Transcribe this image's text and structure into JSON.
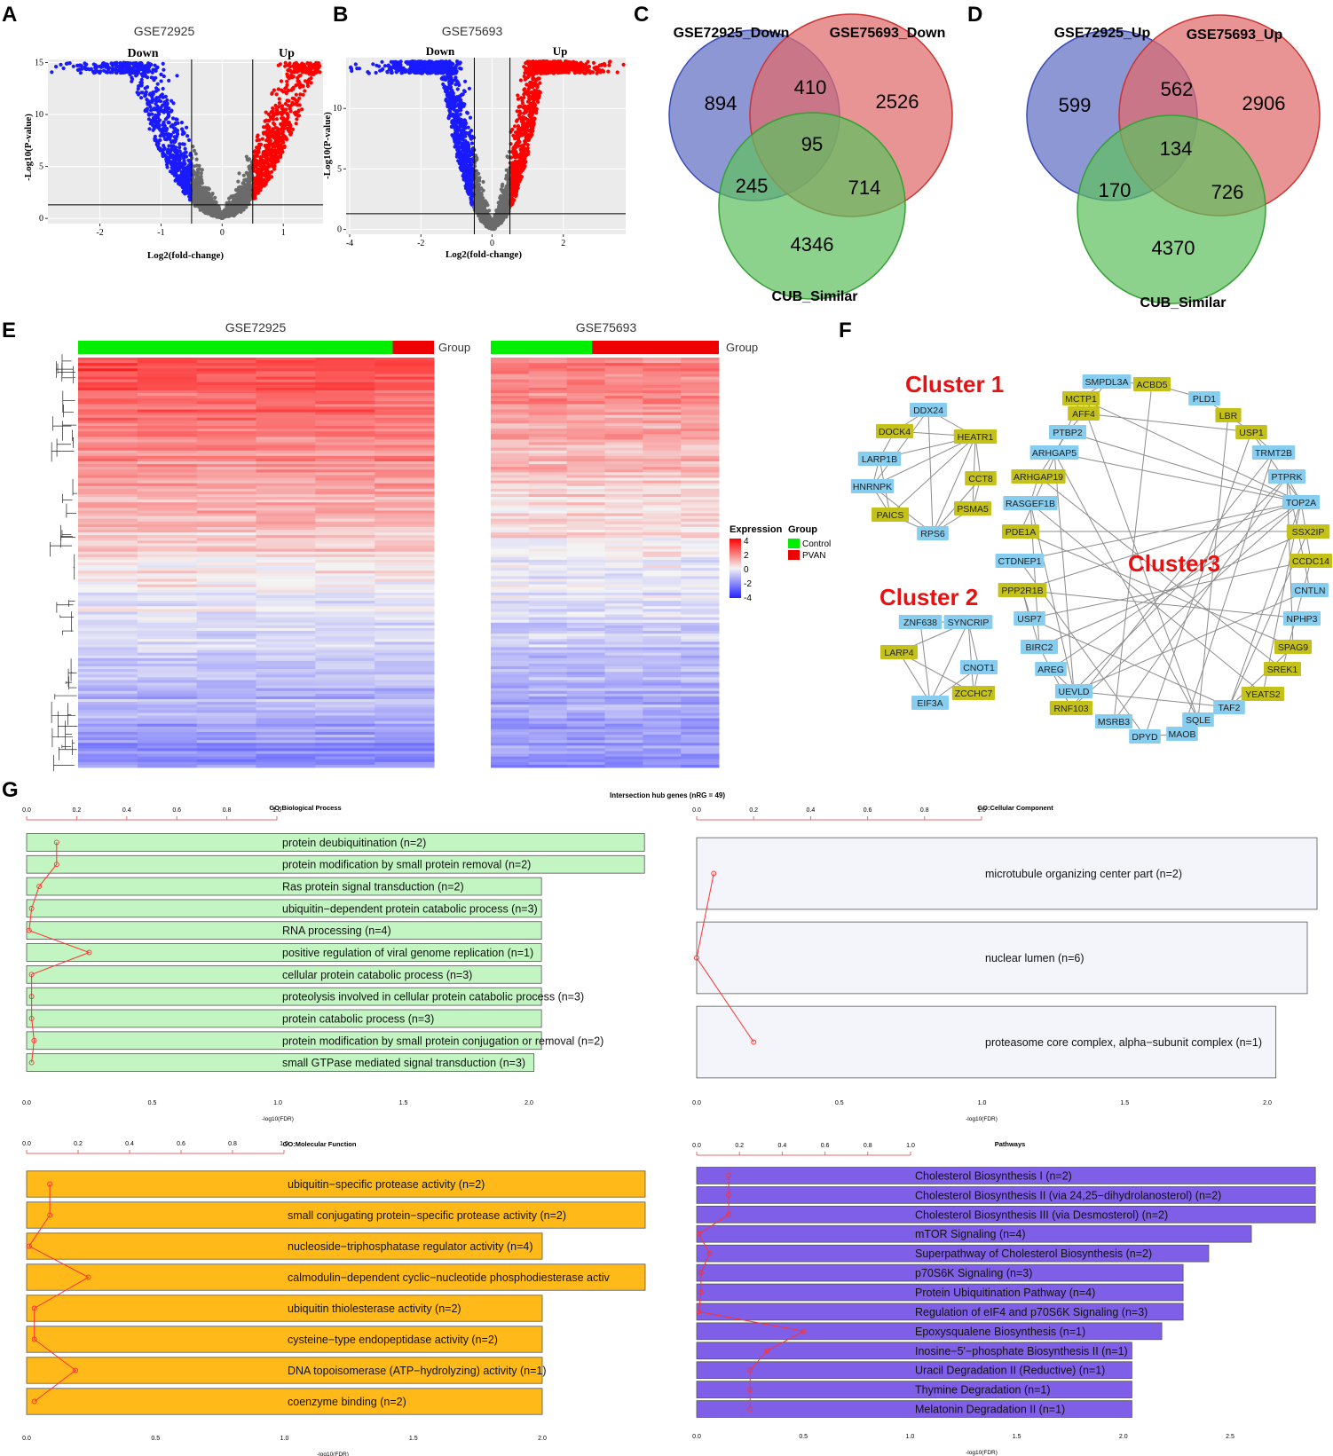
{
  "panel_letters": {
    "a": "A",
    "b": "B",
    "c": "C",
    "d": "D",
    "e": "E",
    "f": "F",
    "g": "G"
  },
  "chart_data": [
    {
      "id": "volcano_a",
      "type": "scatter",
      "title": "GSE72925",
      "xlabel": "Log2(fold-change)",
      "ylabel": "-Log10(P-value)",
      "xlim": [
        -2.85,
        1.65
      ],
      "ylim": [
        -0.5,
        15.3
      ],
      "xticks": [
        -2,
        -1,
        0,
        1
      ],
      "yticks": [
        0,
        5,
        10,
        15
      ],
      "fc_threshold": 0.5,
      "p_line": 1.3,
      "region_labels": {
        "down": "Down",
        "up": "Up"
      },
      "colors": {
        "down": "#1a1aff",
        "up": "#ff0000",
        "ns": "#6b6b6b"
      }
    },
    {
      "id": "volcano_b",
      "type": "scatter",
      "title": "GSE75693",
      "xlabel": "Log2(fold-change)",
      "ylabel": "-Log10(P-value)",
      "xlim": [
        -4.1,
        3.75
      ],
      "ylim": [
        -0.4,
        14.2
      ],
      "xticks": [
        -4,
        -2,
        0,
        2
      ],
      "yticks": [
        0,
        5,
        10
      ],
      "fc_threshold": 0.5,
      "p_line": 1.3,
      "region_labels": {
        "down": "Down",
        "up": "Up"
      },
      "colors": {
        "down": "#1a1aff",
        "up": "#ff0000",
        "ns": "#6b6b6b"
      }
    },
    {
      "id": "venn_c",
      "type": "venn",
      "sets": [
        "GSE72925_Down",
        "GSE75693_Down",
        "CUB_Similar"
      ],
      "colors": [
        "#5f6fc4",
        "#e06b6b",
        "#5fbf5f"
      ],
      "regions": {
        "a_only": "894",
        "b_only": "2526",
        "c_only": "4346",
        "ab": "410",
        "ac": "245",
        "bc": "714",
        "abc": "95"
      }
    },
    {
      "id": "venn_d",
      "type": "venn",
      "sets": [
        "GSE72925_Up",
        "GSE75693_Up",
        "CUB_Similar"
      ],
      "colors": [
        "#5f6fc4",
        "#e06b6b",
        "#5fbf5f"
      ],
      "regions": {
        "a_only": "599",
        "b_only": "2906",
        "c_only": "4370",
        "ab": "562",
        "ac": "170",
        "bc": "726",
        "abc": "134"
      }
    },
    {
      "id": "heatmap_e",
      "type": "heatmap",
      "titles": [
        "GSE72925",
        "GSE75693"
      ],
      "group_label": "Group",
      "groups": {
        "GSE72925": {
          "control_fraction": 0.884,
          "pvan_fraction": 0.116
        },
        "GSE75693": {
          "control_fraction": 0.444,
          "pvan_fraction": 0.556
        }
      },
      "legend": {
        "expression_title": "Expression",
        "expression_ticks": [
          "4",
          "2",
          "0",
          "-2",
          "-4"
        ],
        "group_title": "Group",
        "group_entries": [
          "Control",
          "PVAN"
        ],
        "group_colors": [
          "#00ee00",
          "#ee0000"
        ]
      },
      "color_scale": {
        "high": "#ff0000",
        "mid": "#f2f2f2",
        "low": "#3333ff"
      }
    },
    {
      "id": "bars_bp",
      "type": "bar",
      "title": "GO:Biological Process",
      "xlabel": "-log10(FDR)",
      "xlim": [
        0,
        2.0
      ],
      "xticks": [
        "0.0",
        "0.5",
        "1.0",
        "1.5",
        "2.0"
      ],
      "top_ticks": [
        "0.0",
        "0.2",
        "0.4",
        "0.6",
        "0.8",
        "1.0"
      ],
      "bar_color": "#c2f5c2",
      "categories": [
        "protein deubiquitination (n=2)",
        "protein modification by small protein removal (n=2)",
        "Ras protein signal transduction (n=2)",
        "ubiquitin−dependent protein catabolic process (n=3)",
        "RNA processing (n=4)",
        "positive regulation of viral genome replication (n=1)",
        "cellular protein catabolic process (n=3)",
        "proteolysis involved in cellular protein catabolic process (n=3)",
        "protein catabolic process (n=3)",
        "protein modification by small protein conjugation or removal (n=2)",
        "small GTPase mediated signal transduction (n=3)"
      ],
      "values": [
        2.46,
        2.46,
        2.05,
        2.05,
        2.05,
        2.05,
        2.05,
        2.05,
        2.05,
        2.05,
        2.02
      ],
      "line_values": [
        0.12,
        0.12,
        0.05,
        0.02,
        0.01,
        0.25,
        0.02,
        0.02,
        0.02,
        0.03,
        0.02
      ]
    },
    {
      "id": "bars_cc",
      "type": "bar",
      "title": "GO:Cellular Component",
      "xlabel": "-log10(FDR)",
      "xlim": [
        0,
        2.0
      ],
      "xticks": [
        "0.0",
        "0.5",
        "1.0",
        "1.5",
        "2.0"
      ],
      "top_ticks": [
        "0.0",
        "0.2",
        "0.4",
        "0.6",
        "0.8",
        "1.0"
      ],
      "bar_color": "#f4f5fb",
      "categories": [
        "microtubule organizing center part (n=2)",
        "nuclear lumen (n=6)",
        "proteasome core complex, alpha−subunit complex (n=1)"
      ],
      "values": [
        2.18,
        2.14,
        2.03
      ],
      "line_values": [
        0.06,
        0.0,
        0.2
      ]
    },
    {
      "id": "bars_mf",
      "type": "bar",
      "title": "GO:Molecular Function",
      "xlabel": "-log10(FDR)",
      "xlim": [
        0,
        2.0
      ],
      "xticks": [
        "0.0",
        "0.5",
        "1.0",
        "1.5",
        "2.0"
      ],
      "top_ticks": [
        "0.0",
        "0.2",
        "0.4",
        "0.6",
        "0.8",
        "1.0"
      ],
      "bar_color": "#ffba19",
      "categories": [
        "ubiquitin−specific protease activity (n=2)",
        "small conjugating protein−specific protease activity (n=2)",
        "nucleoside−triphosphatase regulator activity (n=4)",
        "calmodulin−dependent cyclic−nucleotide phosphodiesterase activ",
        "ubiquitin thiolesterase activity (n=2)",
        "cysteine−type endopeptidase activity (n=2)",
        "DNA topoisomerase (ATP−hydrolyzing) activity (n=1)",
        "coenzyme binding (n=2)"
      ],
      "values": [
        2.4,
        2.4,
        2.0,
        2.4,
        2.0,
        2.0,
        2.0,
        2.0
      ],
      "line_values": [
        0.09,
        0.09,
        0.01,
        0.24,
        0.03,
        0.03,
        0.19,
        0.03
      ]
    },
    {
      "id": "bars_pw",
      "type": "bar",
      "title": "Pathways",
      "xlabel": "-log10(FDR)",
      "xlim": [
        0,
        2.5
      ],
      "xticks": [
        "0.0",
        "0.5",
        "1.0",
        "1.5",
        "2.0",
        "2.5"
      ],
      "top_ticks": [
        "0.0",
        "0.2",
        "0.4",
        "0.6",
        "0.8",
        "1.0"
      ],
      "bar_color": "#7f5fe8",
      "categories": [
        "Cholesterol Biosynthesis I (n=2)",
        "Cholesterol Biosynthesis II (via 24,25−dihydrolanosterol) (n=2)",
        "Cholesterol Biosynthesis III (via Desmosterol) (n=2)",
        "mTOR Signaling (n=4)",
        "Superpathway of Cholesterol Biosynthesis (n=2)",
        "p70S6K Signaling (n=3)",
        "Protein Ubiquitination Pathway (n=4)",
        "Regulation of eIF4 and p70S6K Signaling (n=3)",
        "Epoxysqualene Biosynthesis (n=1)",
        "Inosine−5'−phosphate Biosynthesis II (n=1)",
        "Uracil Degradation II (Reductive) (n=1)",
        "Thymine Degradation (n=1)",
        "Melatonin Degradation II (n=1)"
      ],
      "values": [
        2.9,
        2.9,
        2.9,
        2.6,
        2.4,
        2.28,
        2.28,
        2.28,
        2.18,
        2.04,
        2.04,
        2.04,
        2.04
      ],
      "line_values": [
        0.15,
        0.15,
        0.15,
        0.01,
        0.06,
        0.02,
        0.02,
        0.01,
        0.5,
        0.33,
        0.25,
        0.25,
        0.25
      ]
    }
  ],
  "intersection_title": "Intersection hub genes (nRG = 49)",
  "network": {
    "cluster_labels": [
      "Cluster 1",
      "Cluster 2",
      "Cluster3"
    ],
    "nodes": [
      {
        "id": "DDX24",
        "color": "blue"
      },
      {
        "id": "DOCK4",
        "color": "olive"
      },
      {
        "id": "HEATR1",
        "color": "olive"
      },
      {
        "id": "LARP1B",
        "color": "blue"
      },
      {
        "id": "CCT8",
        "color": "olive"
      },
      {
        "id": "HNRNPK",
        "color": "blue"
      },
      {
        "id": "PSMA5",
        "color": "olive"
      },
      {
        "id": "PAICS",
        "color": "olive"
      },
      {
        "id": "RPS6",
        "color": "blue"
      },
      {
        "id": "ZNF638",
        "color": "blue"
      },
      {
        "id": "SYNCRIP",
        "color": "blue"
      },
      {
        "id": "LARP4",
        "color": "olive"
      },
      {
        "id": "CNOT1",
        "color": "blue"
      },
      {
        "id": "ZCCHC7",
        "color": "olive"
      },
      {
        "id": "EIF3A",
        "color": "blue"
      },
      {
        "id": "SMPDL3A",
        "color": "blue"
      },
      {
        "id": "ACBD5",
        "color": "olive"
      },
      {
        "id": "MCTP1",
        "color": "olive"
      },
      {
        "id": "PLD1",
        "color": "blue"
      },
      {
        "id": "AFF4",
        "color": "olive"
      },
      {
        "id": "LBR",
        "color": "olive"
      },
      {
        "id": "PTBP2",
        "color": "blue"
      },
      {
        "id": "USP1",
        "color": "olive"
      },
      {
        "id": "ARHGAP5",
        "color": "blue"
      },
      {
        "id": "TRMT2B",
        "color": "blue"
      },
      {
        "id": "ARHGAP19",
        "color": "olive"
      },
      {
        "id": "PTPRK",
        "color": "blue"
      },
      {
        "id": "RASGEF1B",
        "color": "blue"
      },
      {
        "id": "TOP2A",
        "color": "blue"
      },
      {
        "id": "PDE1A",
        "color": "olive"
      },
      {
        "id": "SSX2IP",
        "color": "olive"
      },
      {
        "id": "CTDNEP1",
        "color": "blue"
      },
      {
        "id": "CCDC14",
        "color": "olive"
      },
      {
        "id": "PPP2R1B",
        "color": "olive"
      },
      {
        "id": "CNTLN",
        "color": "blue"
      },
      {
        "id": "USP7",
        "color": "blue"
      },
      {
        "id": "NPHP3",
        "color": "blue"
      },
      {
        "id": "BIRC2",
        "color": "blue"
      },
      {
        "id": "SPAG9",
        "color": "olive"
      },
      {
        "id": "AREG",
        "color": "blue"
      },
      {
        "id": "SREK1",
        "color": "olive"
      },
      {
        "id": "UEVLD",
        "color": "blue"
      },
      {
        "id": "YEATS2",
        "color": "olive"
      },
      {
        "id": "RNF103",
        "color": "olive"
      },
      {
        "id": "TAF2",
        "color": "blue"
      },
      {
        "id": "MSRB3",
        "color": "blue"
      },
      {
        "id": "SQLE",
        "color": "blue"
      },
      {
        "id": "DPYD",
        "color": "blue"
      },
      {
        "id": "MAOB",
        "color": "blue"
      }
    ],
    "edges": [
      [
        "DDX24",
        "DOCK4"
      ],
      [
        "DDX24",
        "HEATR1"
      ],
      [
        "DDX24",
        "HNRNPK"
      ],
      [
        "DDX24",
        "RPS6"
      ],
      [
        "DOCK4",
        "HEATR1"
      ],
      [
        "DOCK4",
        "LARP1B"
      ],
      [
        "HEATR1",
        "LARP1B"
      ],
      [
        "HEATR1",
        "HNRNPK"
      ],
      [
        "HEATR1",
        "PAICS"
      ],
      [
        "HEATR1",
        "RPS6"
      ],
      [
        "HEATR1",
        "PSMA5"
      ],
      [
        "HEATR1",
        "CCT8"
      ],
      [
        "LARP1B",
        "HNRNPK"
      ],
      [
        "HNRNPK",
        "PAICS"
      ],
      [
        "HNRNPK",
        "RPS6"
      ],
      [
        "PAICS",
        "RPS6"
      ],
      [
        "PSMA5",
        "RPS6"
      ],
      [
        "CCT8",
        "PSMA5"
      ],
      [
        "CCT8",
        "RPS6"
      ],
      [
        "LARP1B",
        "PAICS"
      ],
      [
        "ZNF638",
        "SYNCRIP"
      ],
      [
        "ZNF638",
        "EIF3A"
      ],
      [
        "SYNCRIP",
        "LARP4"
      ],
      [
        "SYNCRIP",
        "CNOT1"
      ],
      [
        "SYNCRIP",
        "ZCCHC7"
      ],
      [
        "SYNCRIP",
        "EIF3A"
      ],
      [
        "LARP4",
        "EIF3A"
      ],
      [
        "LARP4",
        "ZCCHC7"
      ],
      [
        "CNOT1",
        "ZCCHC7"
      ],
      [
        "CNOT1",
        "EIF3A"
      ],
      [
        "SMPDL3A",
        "ACBD5"
      ],
      [
        "SMPDL3A",
        "MCTP1"
      ],
      [
        "SMPDL3A",
        "AFF4"
      ],
      [
        "ACBD5",
        "PLD1"
      ],
      [
        "ACBD5",
        "MSRB3"
      ],
      [
        "MCTP1",
        "TOP2A"
      ],
      [
        "MCTP1",
        "PDE1A"
      ],
      [
        "AFF4",
        "PTBP2"
      ],
      [
        "AFF4",
        "USP1"
      ],
      [
        "PTBP2",
        "ARHGAP5"
      ],
      [
        "ARHGAP5",
        "TOP2A"
      ],
      [
        "ARHGAP5",
        "SQLE"
      ],
      [
        "ARHGAP5",
        "ARHGAP19"
      ],
      [
        "ARHGAP19",
        "SREK1"
      ],
      [
        "ARHGAP19",
        "RASGEF1B"
      ],
      [
        "RASGEF1B",
        "YEATS2"
      ],
      [
        "RASGEF1B",
        "BIRC2"
      ],
      [
        "PDE1A",
        "SSX2IP"
      ],
      [
        "PDE1A",
        "SPAG9"
      ],
      [
        "CTDNEP1",
        "TOP2A"
      ],
      [
        "CTDNEP1",
        "DPYD"
      ],
      [
        "PPP2R1B",
        "TOP2A"
      ],
      [
        "PPP2R1B",
        "USP7"
      ],
      [
        "PPP2R1B",
        "NPHP3"
      ],
      [
        "PPP2R1B",
        "BIRC2"
      ],
      [
        "USP7",
        "CCDC14"
      ],
      [
        "USP7",
        "TAF2"
      ],
      [
        "BIRC2",
        "SSX2IP"
      ],
      [
        "BIRC2",
        "AREG"
      ],
      [
        "AREG",
        "TOP2A"
      ],
      [
        "AREG",
        "UEVLD"
      ],
      [
        "UEVLD",
        "PTPRK"
      ],
      [
        "UEVLD",
        "CNTLN"
      ],
      [
        "UEVLD",
        "TAF2"
      ],
      [
        "RNF103",
        "TOP2A"
      ],
      [
        "RNF103",
        "TRMT2B"
      ],
      [
        "MSRB3",
        "PTPRK"
      ],
      [
        "DPYD",
        "USP1"
      ],
      [
        "DPYD",
        "MAOB"
      ],
      [
        "MAOB",
        "TRMT2B"
      ],
      [
        "SQLE",
        "LBR"
      ],
      [
        "SQLE",
        "TAF2"
      ],
      [
        "TAF2",
        "SPAG9"
      ],
      [
        "TAF2",
        "TOP2A"
      ],
      [
        "YEATS2",
        "TOP2A"
      ],
      [
        "SREK1",
        "CCDC14"
      ],
      [
        "SPAG9",
        "PTPRK"
      ],
      [
        "CCDC14",
        "TOP2A"
      ],
      [
        "CNTLN",
        "PTPRK"
      ],
      [
        "TOP2A",
        "PTPRK"
      ],
      [
        "TOP2A",
        "USP1"
      ],
      [
        "TRMT2B",
        "USP1"
      ],
      [
        "USP1",
        "LBR"
      ],
      [
        "LBR",
        "PLD1"
      ],
      [
        "PTBP2",
        "TOP2A"
      ],
      [
        "AREG",
        "RNF103"
      ],
      [
        "RASGEF1B",
        "UEVLD"
      ],
      [
        "SSX2IP",
        "TAF2"
      ],
      [
        "ARHGAP5",
        "UEVLD"
      ],
      [
        "MCTP1",
        "SQLE"
      ]
    ]
  }
}
